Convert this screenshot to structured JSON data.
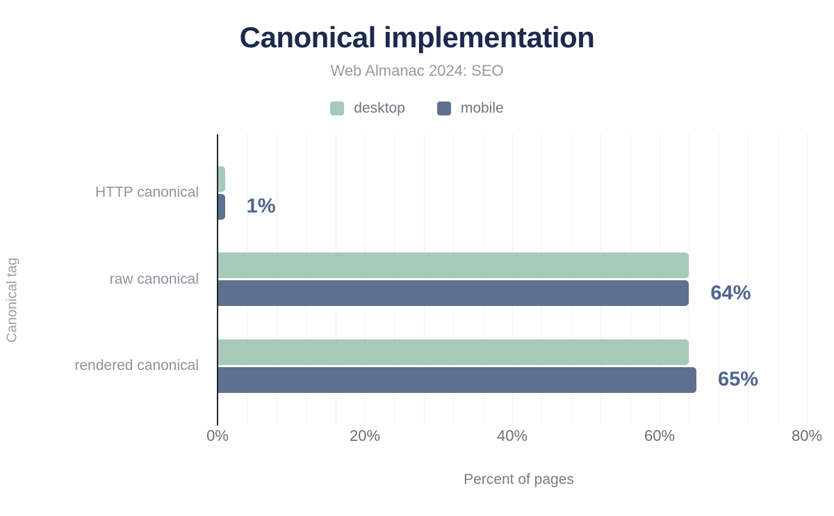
{
  "chart_data": {
    "type": "bar",
    "orientation": "horizontal",
    "title": "Canonical implementation",
    "subtitle": "Web Almanac 2024: SEO",
    "categories": [
      "HTTP canonical",
      "raw canonical",
      "rendered canonical"
    ],
    "series": [
      {
        "name": "desktop",
        "color": "#a6cab7",
        "values": [
          1,
          64,
          64
        ]
      },
      {
        "name": "mobile",
        "color": "#5d7090",
        "values": [
          1,
          64,
          65
        ]
      }
    ],
    "value_labels": [
      "1%",
      "64%",
      "65%"
    ],
    "xlabel": "Percent of pages",
    "ylabel": "Canonical tag",
    "xlim": [
      0,
      80
    ],
    "x_ticks": [
      {
        "value": 0,
        "label": "0%"
      },
      {
        "value": 20,
        "label": "20%"
      },
      {
        "value": 40,
        "label": "40%"
      },
      {
        "value": 60,
        "label": "60%"
      },
      {
        "value": 80,
        "label": "80%"
      }
    ],
    "gridline_step_pct": 4,
    "grid": true,
    "legend_position": "top"
  },
  "colors": {
    "title": "#1b2a4c",
    "subtitle": "#9a9a9a",
    "legend_label": "#6f7680",
    "desktop_bar": "#a6cab7",
    "mobile_bar": "#5d7090",
    "value_label": "#4e648d",
    "category_label": "#8d939c",
    "tick_label": "#696e76",
    "axis_line": "#1f2328",
    "gridline": "#efefef",
    "background": "#ffffff"
  }
}
